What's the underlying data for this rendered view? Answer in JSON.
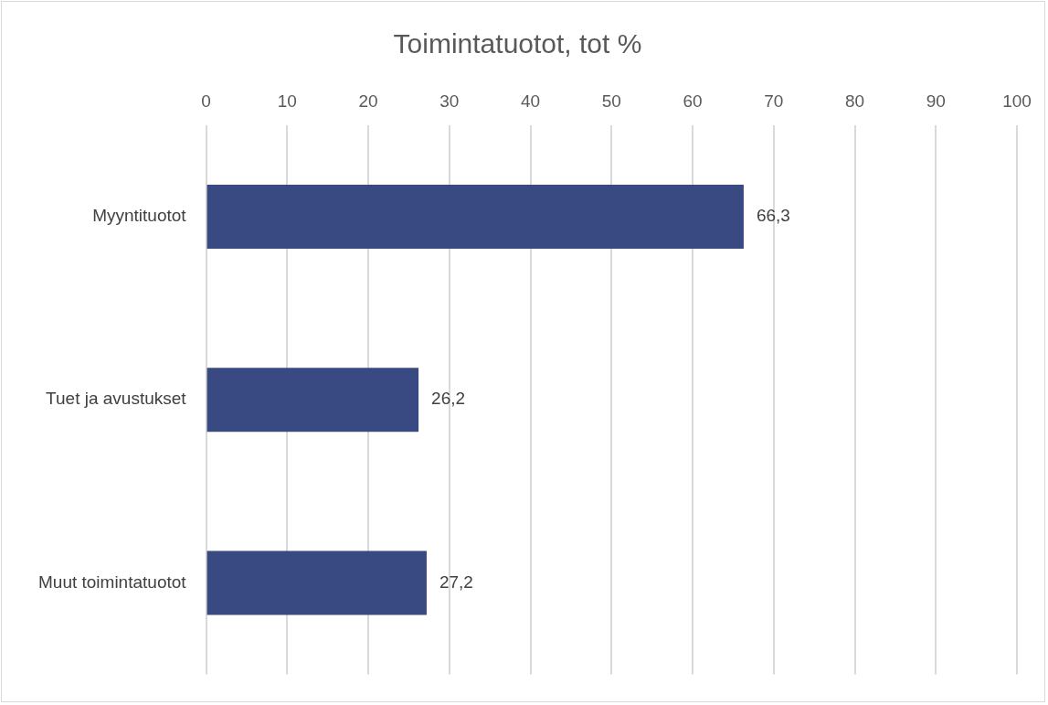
{
  "chart_data": {
    "type": "bar",
    "orientation": "horizontal",
    "title": "Toimintatuotot, tot %",
    "categories": [
      "Myyntituotot",
      "Tuet ja avustukset",
      "Muut toimintatuotot"
    ],
    "values": [
      66.3,
      26.2,
      27.2
    ],
    "value_labels": [
      "66,3",
      "26,2",
      "27,2"
    ],
    "color": "#394a82",
    "xlim": [
      0,
      100
    ],
    "xticks": [
      0,
      10,
      20,
      30,
      40,
      50,
      60,
      70,
      80,
      90,
      100
    ],
    "grid": "x",
    "legend": false
  }
}
